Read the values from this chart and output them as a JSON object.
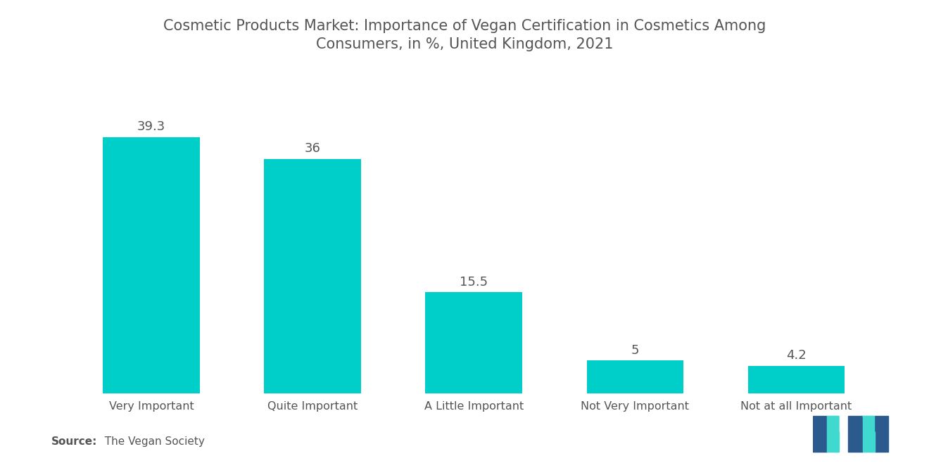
{
  "title_line1": "Cosmetic Products Market: Importance of Vegan Certification in Cosmetics Among",
  "title_line2": "Consumers, in %, United Kingdom, 2021",
  "categories": [
    "Very Important",
    "Quite Important",
    "A Little Important",
    "Not Very Important",
    "Not at all Important"
  ],
  "values": [
    39.3,
    36,
    15.5,
    5,
    4.2
  ],
  "bar_color": "#00CEC9",
  "label_color": "#555555",
  "title_color": "#555555",
  "background_color": "#ffffff",
  "source_label": "Source:",
  "source_text": "  The Vegan Society",
  "bar_label_fontsize": 13,
  "title_fontsize": 15,
  "xtick_fontsize": 11.5,
  "source_fontsize": 11,
  "ylim": [
    0,
    46
  ],
  "bar_width": 0.6,
  "logo_dark": "#2B5A8F",
  "logo_teal": "#40D9D0"
}
